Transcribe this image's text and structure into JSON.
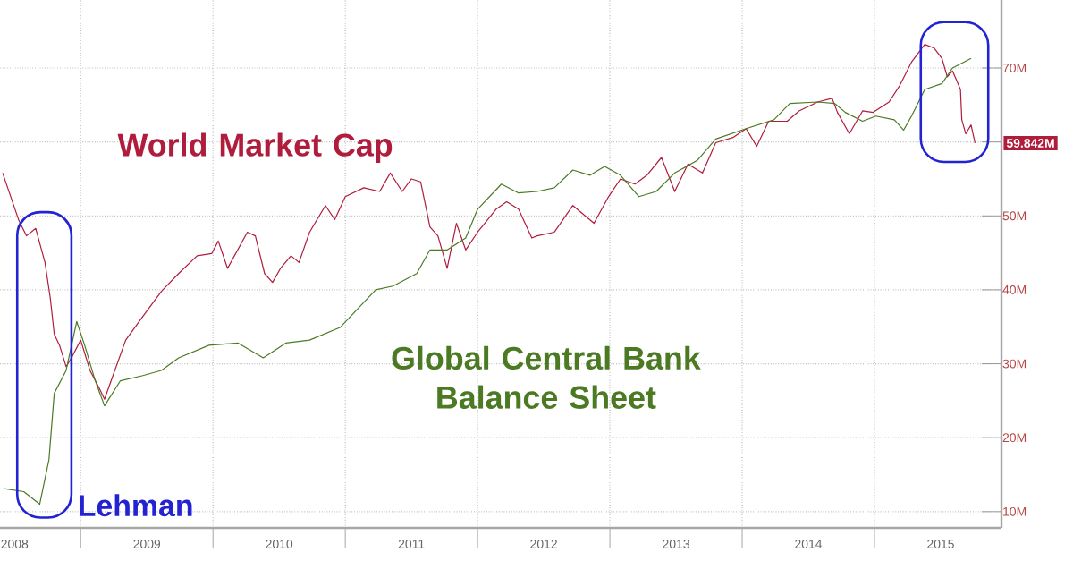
{
  "chart_data": {
    "type": "line",
    "xlim": [
      2008.39,
      2015.96
    ],
    "ylim": [
      7.8,
      79.2
    ],
    "xticks": [
      {
        "value": 2008.5,
        "label": "2008"
      },
      {
        "value": 2009,
        "label": null
      },
      {
        "value": 2009.5,
        "label": "2009"
      },
      {
        "value": 2010,
        "label": null
      },
      {
        "value": 2010.5,
        "label": "2010"
      },
      {
        "value": 2011,
        "label": null
      },
      {
        "value": 2011.5,
        "label": "2011"
      },
      {
        "value": 2012,
        "label": null
      },
      {
        "value": 2012.5,
        "label": "2012"
      },
      {
        "value": 2013,
        "label": null
      },
      {
        "value": 2013.5,
        "label": "2013"
      },
      {
        "value": 2014,
        "label": null
      },
      {
        "value": 2014.5,
        "label": "2014"
      },
      {
        "value": 2015,
        "label": null
      },
      {
        "value": 2015.5,
        "label": "2015"
      }
    ],
    "yticks": [
      {
        "value": 10,
        "label": "10M"
      },
      {
        "value": 20,
        "label": "20M"
      },
      {
        "value": 30,
        "label": "30M"
      },
      {
        "value": 40,
        "label": "40M"
      },
      {
        "value": 50,
        "label": "50M"
      },
      {
        "value": 60,
        "label": null
      },
      {
        "value": 70,
        "label": "70M"
      }
    ],
    "grid": true,
    "series": [
      {
        "name": "World Market Cap",
        "color": "#b01c3c",
        "x": [
          2008.41,
          2008.53,
          2008.59,
          2008.66,
          2008.73,
          2008.77,
          2008.8,
          2008.84,
          2008.89,
          2008.93,
          2009.0,
          2009.07,
          2009.14,
          2009.18,
          2009.23,
          2009.34,
          2009.47,
          2009.61,
          2009.74,
          2009.88,
          2009.99,
          2010.04,
          2010.11,
          2010.26,
          2010.32,
          2010.39,
          2010.45,
          2010.51,
          2010.59,
          2010.65,
          2010.73,
          2010.85,
          2010.92,
          2011.0,
          2011.14,
          2011.26,
          2011.34,
          2011.43,
          2011.5,
          2011.57,
          2011.64,
          2011.7,
          2011.77,
          2011.84,
          2011.91,
          2012.0,
          2012.14,
          2012.22,
          2012.31,
          2012.41,
          2012.45,
          2012.58,
          2012.72,
          2012.88,
          2012.99,
          2013.08,
          2013.19,
          2013.28,
          2013.39,
          2013.49,
          2013.59,
          2013.7,
          2013.8,
          2013.93,
          2014.03,
          2014.11,
          2014.2,
          2014.34,
          2014.43,
          2014.57,
          2014.68,
          2014.72,
          2014.81,
          2014.91,
          2014.99,
          2015.11,
          2015.19,
          2015.28,
          2015.38,
          2015.45,
          2015.51,
          2015.55,
          2015.59,
          2015.65,
          2015.66,
          2015.69,
          2015.73,
          2015.76
        ],
        "values": [
          55.8,
          49.5,
          47.3,
          48.3,
          43.7,
          38.9,
          34.0,
          32.5,
          29.6,
          30.8,
          33.2,
          29.1,
          26.7,
          25.2,
          27.7,
          33.2,
          36.4,
          39.8,
          42.2,
          44.6,
          44.9,
          46.6,
          42.9,
          47.8,
          47.3,
          42.2,
          41.0,
          42.9,
          44.6,
          43.7,
          47.8,
          51.4,
          49.5,
          52.6,
          53.8,
          53.3,
          55.8,
          53.3,
          55.0,
          54.6,
          48.5,
          47.3,
          42.9,
          49.0,
          45.4,
          47.8,
          50.9,
          51.9,
          50.9,
          47.0,
          47.3,
          47.8,
          51.4,
          49.0,
          52.6,
          55.0,
          54.3,
          55.5,
          57.9,
          53.3,
          57.0,
          55.8,
          59.9,
          60.6,
          61.8,
          59.4,
          62.8,
          62.8,
          64.2,
          65.4,
          65.9,
          64.0,
          61.1,
          64.2,
          64.0,
          65.4,
          67.6,
          70.8,
          73.2,
          72.7,
          71.3,
          68.8,
          69.6,
          67.1,
          63.0,
          61.1,
          62.3,
          59.842
        ]
      },
      {
        "name": "Global Central Bank Balance Sheet",
        "color": "#4b7a23",
        "x": [
          2008.42,
          2008.57,
          2008.69,
          2008.76,
          2008.8,
          2008.89,
          2008.97,
          2009.03,
          2009.11,
          2009.18,
          2009.3,
          2009.47,
          2009.61,
          2009.74,
          2009.97,
          2010.19,
          2010.38,
          2010.55,
          2010.73,
          2010.96,
          2011.23,
          2011.36,
          2011.54,
          2011.64,
          2011.77,
          2011.91,
          2012.0,
          2012.18,
          2012.31,
          2012.45,
          2012.58,
          2012.72,
          2012.85,
          2012.96,
          2013.08,
          2013.22,
          2013.35,
          2013.49,
          2013.66,
          2013.8,
          2014.03,
          2014.24,
          2014.36,
          2014.57,
          2014.7,
          2014.78,
          2014.91,
          2015.01,
          2015.15,
          2015.22,
          2015.28,
          2015.38,
          2015.51,
          2015.59,
          2015.73
        ],
        "values": [
          13.1,
          12.7,
          11.0,
          17.0,
          26.0,
          29.1,
          35.7,
          32.5,
          27.7,
          24.3,
          27.7,
          28.4,
          29.1,
          30.8,
          32.5,
          32.8,
          30.8,
          32.8,
          33.2,
          34.9,
          40.0,
          40.5,
          42.2,
          45.4,
          45.4,
          47.0,
          50.9,
          54.3,
          53.1,
          53.3,
          53.8,
          56.2,
          55.5,
          56.7,
          55.5,
          52.6,
          53.3,
          55.8,
          57.5,
          60.4,
          61.8,
          63.0,
          65.2,
          65.4,
          65.2,
          64.0,
          62.8,
          63.5,
          63.0,
          61.6,
          63.5,
          67.1,
          67.9,
          70.0,
          71.3
        ]
      }
    ],
    "annotations": [
      {
        "text": "Lehman",
        "x": 2008.73,
        "y": 11
      },
      {
        "text": "59.842M",
        "x": 2015.76,
        "y": 59.842
      }
    ]
  }
}
